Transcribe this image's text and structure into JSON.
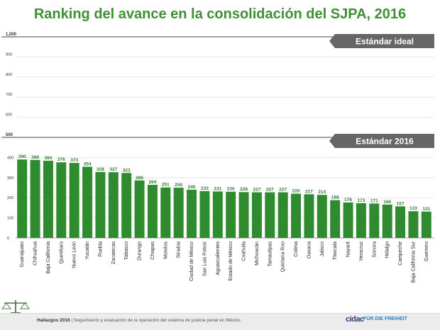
{
  "title": "Ranking del avance en la consolidación del SJPA, 2016",
  "bands": {
    "ideal_label": "Estándar ideal",
    "current_label": "Estándar 2016"
  },
  "footer": {
    "bold": "Hallazgos 2016",
    "text": "Seguimiento y evaluación de la operación del sistema de justicia penal en México",
    "logo_left": "cidac",
    "logo_right": "FÜR DIE FREIHEIT"
  },
  "colors": {
    "title": "#3f8f34",
    "bar": "#2e8b2e",
    "value_label": "#2e7d32",
    "band": "#666666"
  },
  "chart_data": {
    "type": "bar",
    "categories": [
      "Guanajuato",
      "Chihuahua",
      "Baja California",
      "Querétaro",
      "Nuevo León",
      "Yucatán",
      "Puebla",
      "Zacatecas",
      "Tabasco",
      "Durango",
      "Chiapas",
      "Morelos",
      "Sinaloa",
      "Ciudad de México",
      "San Luis Potosí",
      "Aguascalientes",
      "Estado de México",
      "Coahuila",
      "Michoacán",
      "Tamaulipas",
      "Quintana Roo",
      "Colima",
      "Oaxaca",
      "Jalisco",
      "Tlaxcala",
      "Nayarit",
      "Veracruz",
      "Sonora",
      "Hidalgo",
      "Campeche",
      "Baja California Sur",
      "Guerrero"
    ],
    "values": [
      390,
      388,
      384,
      376,
      373,
      354,
      328,
      327,
      323,
      286,
      264,
      251,
      250,
      240,
      233,
      231,
      230,
      228,
      227,
      227,
      227,
      220,
      217,
      214,
      188,
      176,
      173,
      171,
      166,
      157,
      133,
      131
    ],
    "ylim": [
      0,
      1000
    ],
    "yticks_upper": [
      "1,000",
      "900",
      "800",
      "700",
      "600",
      "500"
    ],
    "yticks_lower": [
      "400",
      "300",
      "200",
      "100",
      "0"
    ],
    "grid": true
  }
}
